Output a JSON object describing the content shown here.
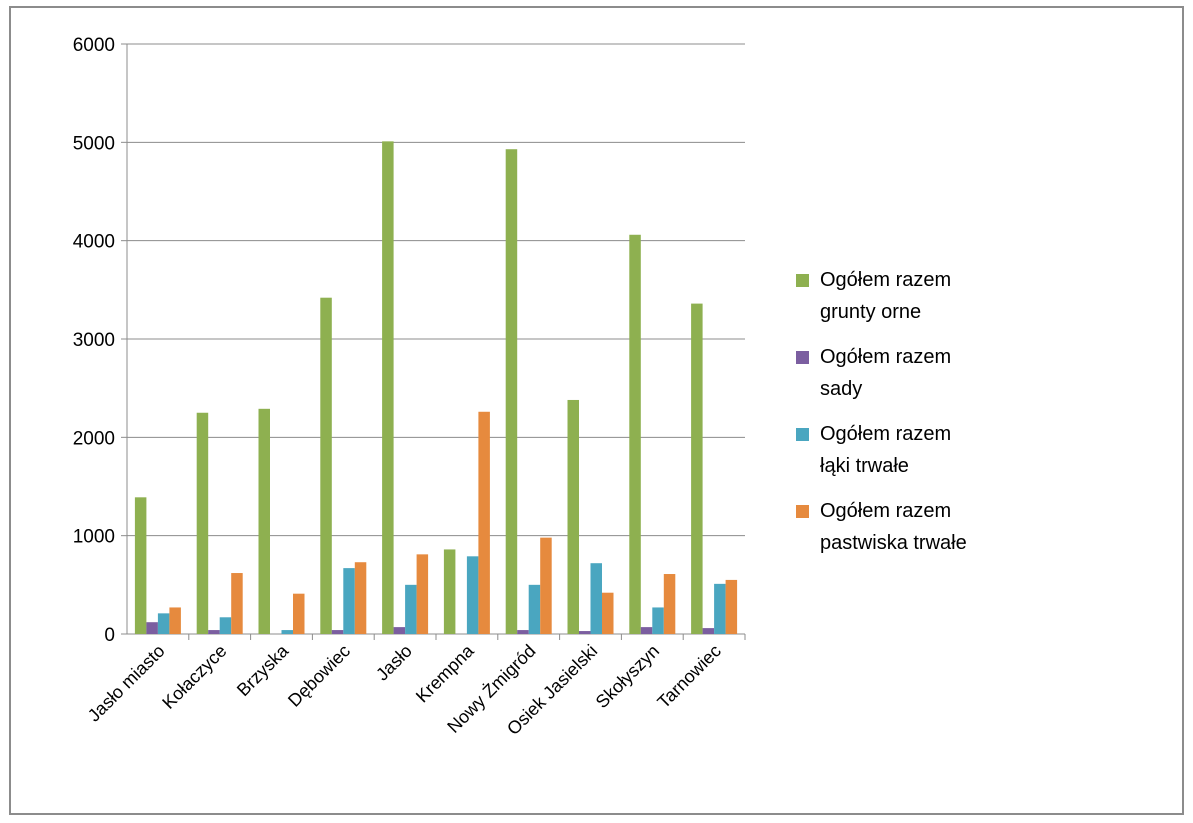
{
  "chart_data": {
    "type": "bar",
    "categories": [
      "Jasło miasto",
      "Kołaczyce",
      "Brzyska",
      "Dębowiec",
      "Jasło",
      "Krempna",
      "Nowy Żmigród",
      "Osiek Jasielski",
      "Skołyszyn",
      "Tarnowiec"
    ],
    "series": [
      {
        "name": "Ogółem razem grunty orne",
        "name_lines": [
          "Ogółem  razem",
          "grunty orne"
        ],
        "color": "#8eb050",
        "values": [
          1390,
          2250,
          2290,
          3420,
          5010,
          860,
          4930,
          2380,
          4060,
          3360
        ]
      },
      {
        "name": "Ogółem razem sady",
        "name_lines": [
          "Ogółem  razem",
          "sady"
        ],
        "color": "#7b5ea0",
        "values": [
          120,
          40,
          0,
          40,
          70,
          0,
          40,
          30,
          70,
          60
        ]
      },
      {
        "name": "Ogółem razem łąki trwałe",
        "name_lines": [
          "Ogółem  razem",
          "łąki trwałe"
        ],
        "color": "#4aa6c0",
        "values": [
          210,
          170,
          40,
          670,
          500,
          790,
          500,
          720,
          270,
          510
        ]
      },
      {
        "name": "Ogółem razem pastwiska trwałe",
        "name_lines": [
          "Ogółem  razem",
          "pastwiska trwałe"
        ],
        "color": "#e68a3e",
        "values": [
          270,
          620,
          410,
          730,
          810,
          2260,
          980,
          420,
          610,
          550
        ]
      }
    ],
    "ylim": [
      0,
      6000
    ],
    "yticks": [
      0,
      1000,
      2000,
      3000,
      4000,
      5000,
      6000
    ],
    "grid": true,
    "legend": "right",
    "title": "",
    "xlabel": "",
    "ylabel": ""
  }
}
